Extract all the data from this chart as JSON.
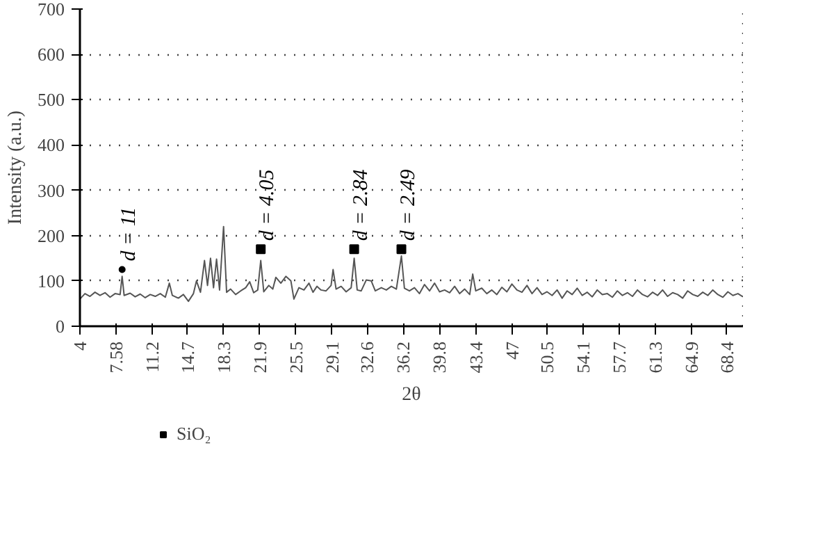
{
  "chart_data": {
    "type": "line",
    "xlabel": "2θ",
    "ylabel": "Intensity (a.u.)",
    "xlim": [
      4,
      70
    ],
    "ylim": [
      0,
      700
    ],
    "xticks": [
      4,
      7.58,
      11.2,
      14.7,
      18.3,
      21.9,
      25.5,
      29.1,
      32.6,
      36.2,
      39.8,
      43.4,
      47,
      50.5,
      54.1,
      57.7,
      61.3,
      64.9,
      68.4
    ],
    "yticks": [
      0,
      100,
      200,
      300,
      400,
      500,
      600,
      700
    ],
    "grid": "y",
    "legend": "bottom",
    "tick_labels": true,
    "series": [
      {
        "color": "#555555",
        "line_style": "solid",
        "x": [
          4,
          4.5,
          5,
          5.5,
          6,
          6.5,
          7,
          7.5,
          8.0,
          8.2,
          8.4,
          9,
          9.5,
          10,
          10.5,
          11,
          11.5,
          12,
          12.5,
          12.9,
          13.2,
          13.8,
          14.3,
          14.8,
          15.3,
          15.6,
          16,
          16.4,
          16.7,
          17,
          17.3,
          17.6,
          17.9,
          18.3,
          18.6,
          19,
          19.5,
          20,
          20.5,
          20.9,
          21.3,
          21.7,
          22.0,
          22.3,
          22.8,
          23.2,
          23.5,
          24,
          24.5,
          25,
          25.3,
          25.8,
          26.3,
          26.8,
          27.2,
          27.6,
          28.0,
          28.5,
          29.0,
          29.2,
          29.5,
          30,
          30.5,
          31,
          31.3,
          31.6,
          32,
          32.5,
          33,
          33.4,
          34,
          34.5,
          35,
          35.5,
          36.0,
          36.3,
          36.8,
          37.3,
          37.8,
          38.3,
          38.8,
          39.3,
          39.8,
          40.3,
          40.8,
          41.3,
          41.8,
          42.3,
          42.8,
          43.1,
          43.4,
          44,
          44.5,
          45,
          45.5,
          46,
          46.5,
          47,
          47.5,
          48,
          48.5,
          49,
          49.5,
          50,
          50.5,
          51,
          51.5,
          52,
          52.5,
          53,
          53.5,
          54,
          54.5,
          55,
          55.5,
          56,
          56.5,
          57,
          57.5,
          58,
          58.5,
          59,
          59.5,
          60,
          60.5,
          61,
          61.5,
          62,
          62.5,
          63,
          63.5,
          64,
          64.5,
          65,
          65.5,
          66,
          66.5,
          67,
          67.5,
          68,
          68.5,
          69,
          69.5,
          70
        ],
        "values": [
          60,
          72,
          66,
          75,
          68,
          74,
          64,
          72,
          70,
          110,
          68,
          73,
          65,
          71,
          63,
          70,
          66,
          72,
          64,
          95,
          68,
          62,
          70,
          55,
          72,
          100,
          75,
          145,
          90,
          150,
          85,
          148,
          80,
          220,
          75,
          82,
          70,
          78,
          85,
          98,
          74,
          80,
          145,
          76,
          90,
          82,
          108,
          95,
          110,
          100,
          60,
          85,
          80,
          95,
          75,
          88,
          80,
          78,
          90,
          125,
          82,
          88,
          76,
          85,
          150,
          80,
          78,
          102,
          100,
          78,
          85,
          80,
          88,
          82,
          155,
          84,
          78,
          85,
          72,
          92,
          78,
          95,
          76,
          80,
          74,
          88,
          72,
          82,
          70,
          115,
          78,
          84,
          72,
          80,
          70,
          86,
          76,
          93,
          80,
          75,
          90,
          72,
          85,
          70,
          76,
          68,
          80,
          62,
          78,
          70,
          84,
          68,
          75,
          65,
          80,
          70,
          72,
          64,
          78,
          68,
          74,
          66,
          80,
          70,
          65,
          75,
          68,
          80,
          66,
          74,
          70,
          62,
          78,
          70,
          66,
          75,
          68,
          80,
          70,
          64,
          76,
          68,
          72,
          65
        ]
      },
      {
        "type": "scatter",
        "marker": "circle",
        "color": "#000000",
        "x": [
          8.2
        ],
        "values": [
          125
        ]
      },
      {
        "type": "scatter",
        "marker": "square",
        "color": "#000000",
        "name": "SiO₂",
        "x": [
          22.0,
          31.3,
          36.0
        ],
        "values": [
          170,
          170,
          170
        ]
      }
    ],
    "annotations": [
      {
        "text": "d = 11",
        "x": 8.2,
        "y": 125
      },
      {
        "text": "d = 4.05",
        "x": 22.0,
        "y": 170
      },
      {
        "text": "d = 2.84",
        "x": 31.3,
        "y": 170
      },
      {
        "text": "d = 2.49",
        "x": 36.0,
        "y": 170
      }
    ]
  }
}
